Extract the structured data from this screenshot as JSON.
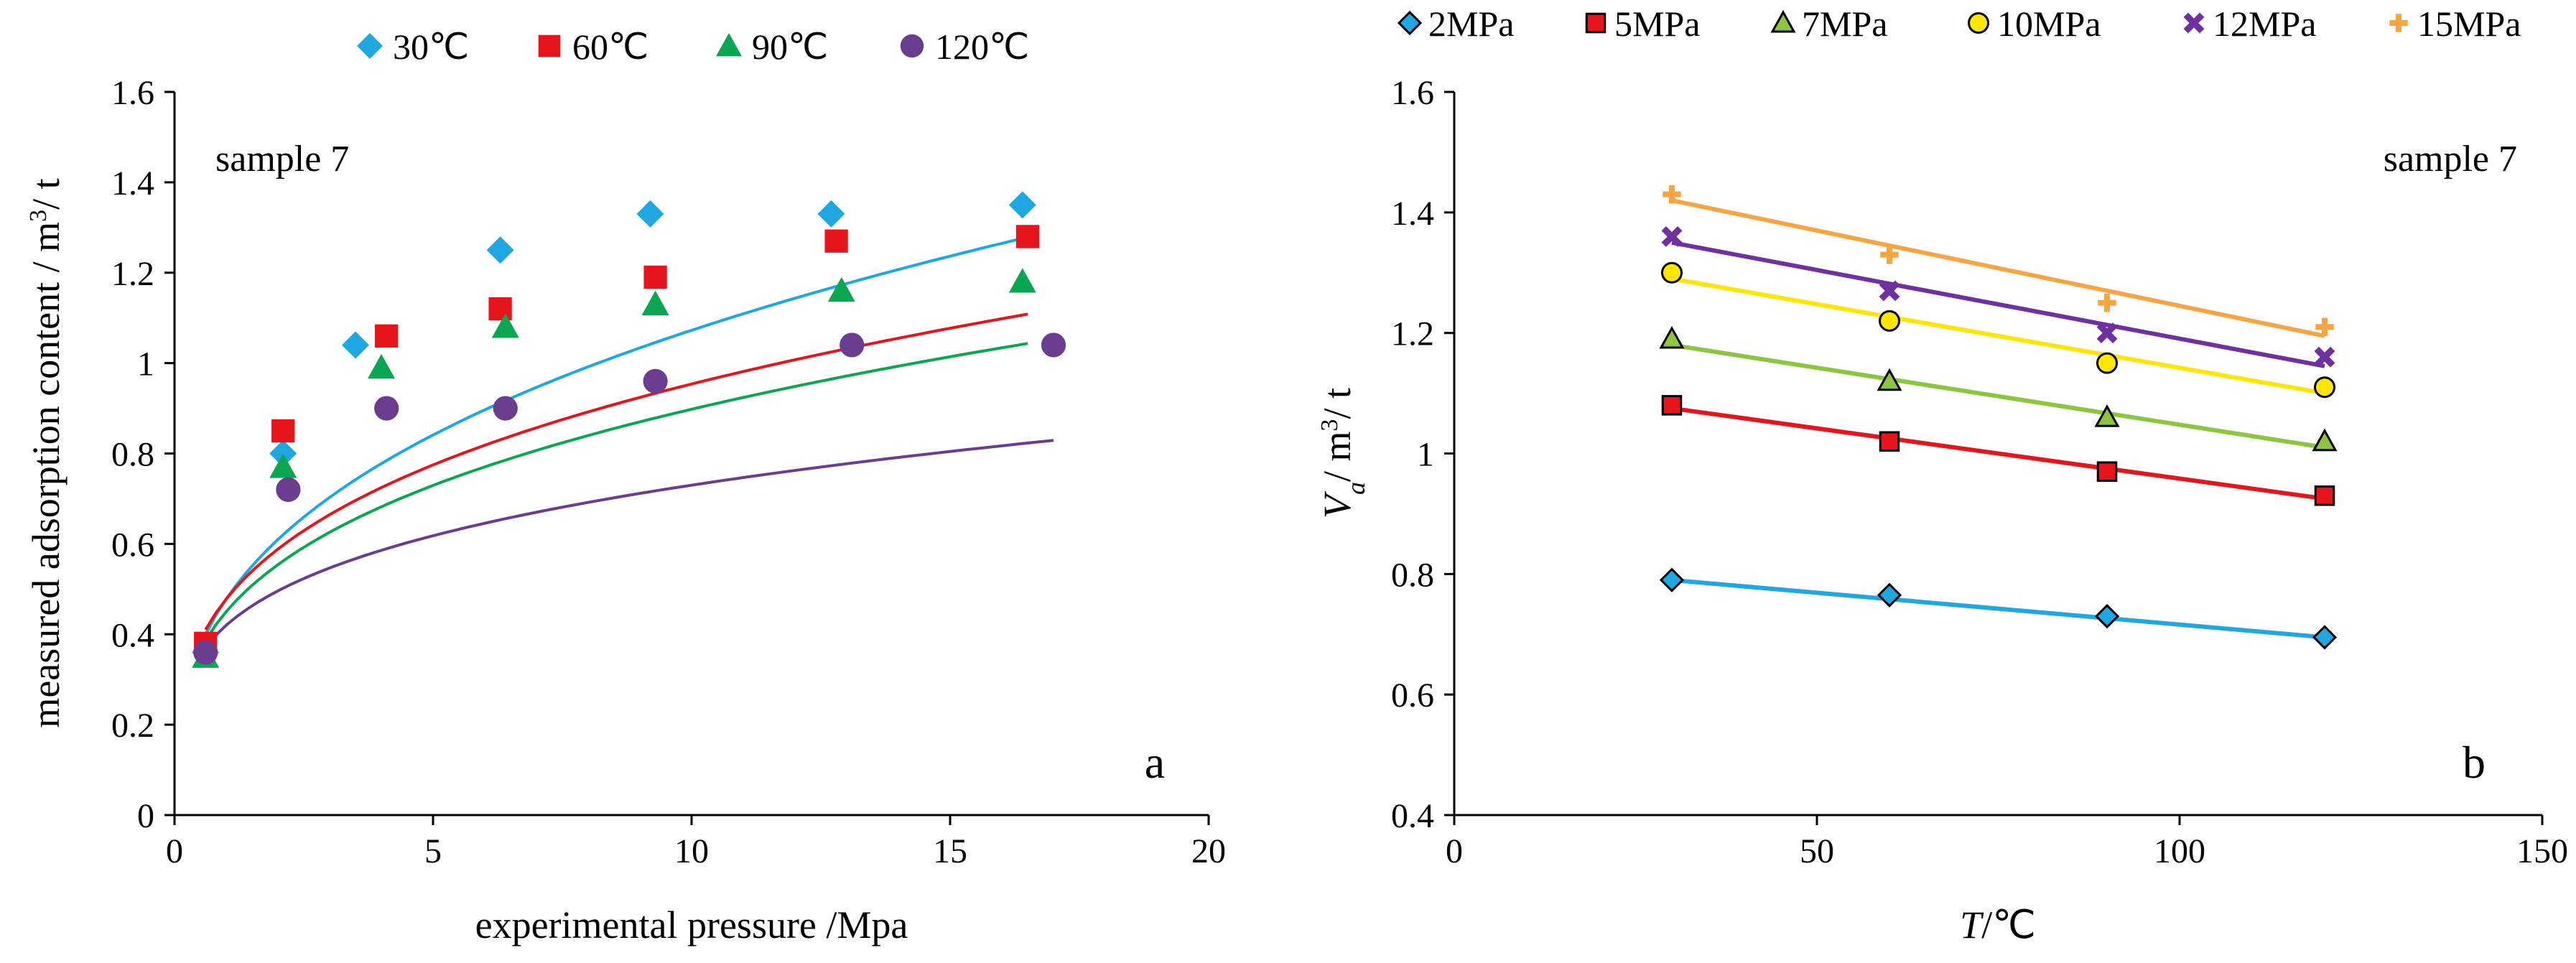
{
  "chart_data": [
    {
      "id": "a",
      "type": "scatter",
      "panel_label": "a",
      "annotation": "sample  7",
      "xlabel": "experimental pressure /Mpa",
      "ylabel": "measured adsorption content / m",
      "ylabel_sup": "3",
      "ylabel_tail": "/ t",
      "xlim": [
        0,
        20
      ],
      "ylim": [
        0,
        1.6
      ],
      "xticks": [
        0,
        5,
        10,
        15,
        20
      ],
      "yticks": [
        0,
        0.2,
        0.4,
        0.6,
        0.8,
        1,
        1.2,
        1.4,
        1.6
      ],
      "xtick_labels": [
        "0",
        "5",
        "10",
        "15",
        "20"
      ],
      "ytick_labels": [
        "0",
        "0.2",
        "0.4",
        "0.6",
        "0.8",
        "1",
        "1.2",
        "1.4",
        "1.6"
      ],
      "legend_position": "top",
      "series": [
        {
          "name": "30℃",
          "color": "#1ea7e1",
          "marker": "diamond",
          "x": [
            0.6,
            2.1,
            3.5,
            6.3,
            9.2,
            12.7,
            16.4
          ],
          "y": [
            0.36,
            0.8,
            1.04,
            1.25,
            1.33,
            1.33,
            1.35
          ],
          "fit_a": 0.478,
          "fit_b": 0.351,
          "fit_x": [
            0.6,
            16.4
          ]
        },
        {
          "name": "60℃",
          "color": "#e8141b",
          "marker": "square",
          "x": [
            0.6,
            2.1,
            4.1,
            6.3,
            9.3,
            12.8,
            16.5
          ],
          "y": [
            0.38,
            0.85,
            1.06,
            1.12,
            1.19,
            1.27,
            1.28
          ],
          "fit_a": 0.478,
          "fit_b": 0.3,
          "fit_x": [
            0.6,
            16.5
          ]
        },
        {
          "name": "90℃",
          "color": "#0aa651",
          "marker": "triangle",
          "x": [
            0.6,
            2.1,
            4.0,
            6.4,
            9.3,
            12.9,
            16.4
          ],
          "y": [
            0.35,
            0.77,
            0.99,
            1.08,
            1.13,
            1.16,
            1.18
          ],
          "fit_a": 0.45,
          "fit_b": 0.3,
          "fit_x": [
            0.6,
            16.5
          ]
        },
        {
          "name": "120℃",
          "color": "#6a3d8e",
          "marker": "circle",
          "x": [
            0.6,
            2.2,
            4.1,
            6.4,
            9.3,
            13.1,
            17.0
          ],
          "y": [
            0.36,
            0.72,
            0.9,
            0.9,
            0.96,
            1.04,
            1.04
          ],
          "fit_a": 0.42,
          "fit_b": 0.24,
          "fit_x": [
            0.6,
            17.0
          ]
        }
      ]
    },
    {
      "id": "b",
      "type": "scatter",
      "panel_label": "b",
      "annotation": "sample  7",
      "xlabel_italic": "T",
      "xlabel_rest": "/℃",
      "ylabel_italic": "V",
      "ylabel_sub": "a",
      "ylabel_rest": "/ m",
      "ylabel_sup": "3",
      "ylabel_tail": "/ t",
      "xlim": [
        0,
        150
      ],
      "ylim": [
        0.4,
        1.6
      ],
      "xticks": [
        0,
        50,
        100,
        150
      ],
      "yticks": [
        0.4,
        0.6,
        0.8,
        1,
        1.2,
        1.4,
        1.6
      ],
      "xtick_labels": [
        "0",
        "50",
        "100",
        "150"
      ],
      "ytick_labels": [
        "0.4",
        "0.6",
        "0.8",
        "1",
        "1.2",
        "1.4",
        "1.6"
      ],
      "legend_position": "top",
      "series": [
        {
          "name": "2MPa",
          "color": "#1ea7e1",
          "marker": "diamond",
          "x": [
            30,
            60,
            90,
            120
          ],
          "y": [
            0.79,
            0.765,
            0.73,
            0.695
          ],
          "fit": [
            [
              30,
              0.79
            ],
            [
              120,
              0.695
            ]
          ]
        },
        {
          "name": "5MPa",
          "color": "#e8141b",
          "marker": "square",
          "x": [
            30,
            60,
            90,
            120
          ],
          "y": [
            1.08,
            1.02,
            0.97,
            0.93
          ],
          "fit": [
            [
              30,
              1.075
            ],
            [
              120,
              0.925
            ]
          ]
        },
        {
          "name": "7MPa",
          "color": "#8cc63f",
          "marker": "triangle",
          "x": [
            30,
            60,
            90,
            120
          ],
          "y": [
            1.19,
            1.12,
            1.06,
            1.02
          ],
          "fit": [
            [
              30,
              1.18
            ],
            [
              120,
              1.01
            ]
          ]
        },
        {
          "name": "10MPa",
          "color": "#ffe600",
          "marker": "circle",
          "x": [
            30,
            60,
            90,
            120
          ],
          "y": [
            1.3,
            1.22,
            1.15,
            1.11
          ],
          "fit": [
            [
              30,
              1.29
            ],
            [
              120,
              1.1
            ]
          ]
        },
        {
          "name": "12MPa",
          "color": "#7030a0",
          "marker": "x",
          "x": [
            30,
            60,
            90,
            120
          ],
          "y": [
            1.36,
            1.27,
            1.2,
            1.16
          ],
          "fit": [
            [
              30,
              1.35
            ],
            [
              120,
              1.145
            ]
          ]
        },
        {
          "name": "15MPa",
          "color": "#f7a541",
          "marker": "plus",
          "x": [
            30,
            60,
            90,
            120
          ],
          "y": [
            1.43,
            1.33,
            1.25,
            1.21
          ],
          "fit": [
            [
              30,
              1.42
            ],
            [
              120,
              1.195
            ]
          ]
        }
      ]
    }
  ]
}
